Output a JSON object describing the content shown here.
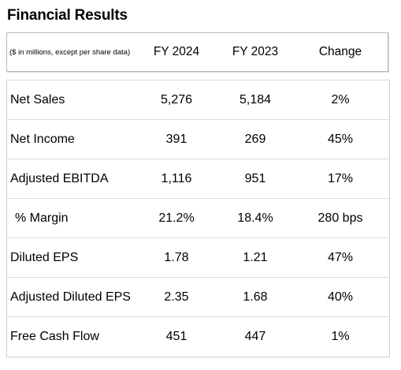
{
  "title": "Financial Results",
  "header": {
    "label": "($ in millions, except per share data)",
    "col_2024": "FY 2024",
    "col_2023": "FY 2023",
    "col_change": "Change"
  },
  "rows": [
    {
      "label": "Net Sales",
      "fy2024": "5,276",
      "fy2023": "5,184",
      "change": "2%"
    },
    {
      "label": "Net Income",
      "fy2024": "391",
      "fy2023": "269",
      "change": "45%"
    },
    {
      "label": "Adjusted EBITDA",
      "fy2024": "1,116",
      "fy2023": "951",
      "change": "17%"
    },
    {
      "label": "% Margin",
      "fy2024": "21.2%",
      "fy2023": "18.4%",
      "change": "280 bps"
    },
    {
      "label": "Diluted EPS",
      "fy2024": "1.78",
      "fy2023": "1.21",
      "change": "47%"
    },
    {
      "label": "Adjusted Diluted EPS",
      "fy2024": "2.35",
      "fy2023": "1.68",
      "change": "40%"
    },
    {
      "label": "Free Cash Flow",
      "fy2024": "451",
      "fy2023": "447",
      "change": "1%"
    }
  ]
}
